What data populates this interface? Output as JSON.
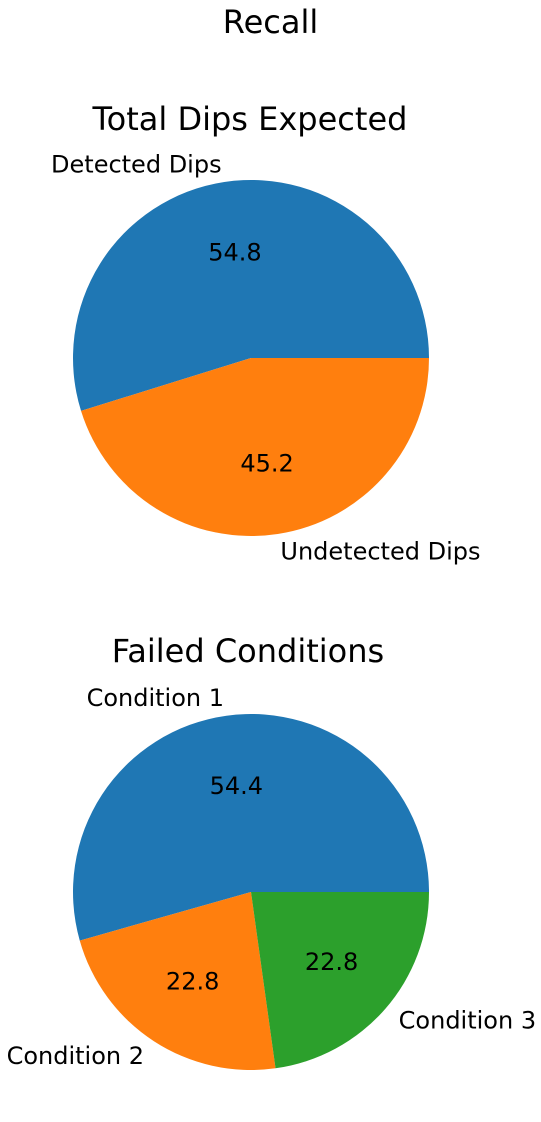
{
  "figure": {
    "suptitle": "Recall"
  },
  "chart_data": [
    {
      "type": "pie",
      "title": "Total Dips Expected",
      "labels": [
        "Detected Dips",
        "Undetected Dips"
      ],
      "values": [
        54.8,
        45.2
      ],
      "autopct_labels": [
        "54.8",
        "45.2"
      ],
      "colors": [
        "#1f77b4",
        "#ff7f0e"
      ],
      "start_angle_deg": 0,
      "direction": "counterclockwise"
    },
    {
      "type": "pie",
      "title": "Failed Conditions",
      "labels": [
        "Condition 1",
        "Condition 2",
        "Condition 3"
      ],
      "values": [
        54.4,
        22.8,
        22.8
      ],
      "autopct_labels": [
        "54.4",
        "22.8",
        "22.8"
      ],
      "colors": [
        "#1f77b4",
        "#ff7f0e",
        "#2ca02c"
      ],
      "start_angle_deg": 0,
      "direction": "counterclockwise"
    }
  ]
}
